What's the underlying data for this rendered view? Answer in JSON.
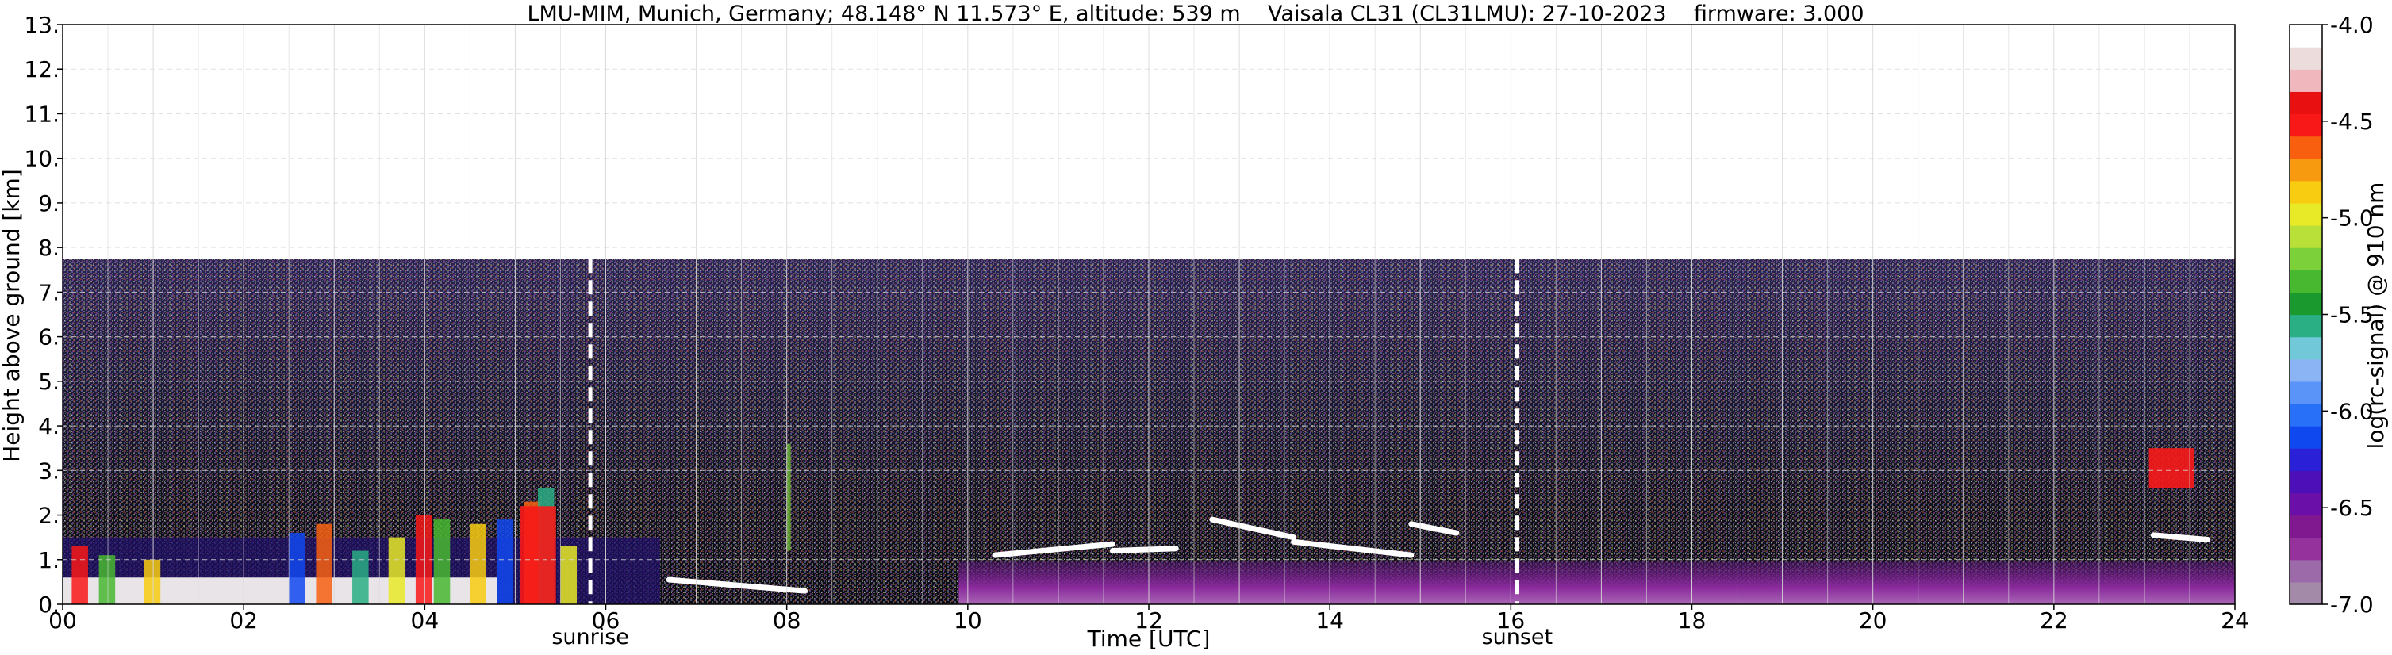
{
  "chart_data": {
    "type": "heatmap",
    "title": "LMU-MIM, Munich, Germany; 48.148° N 11.573° E, altitude: 539 m    Vaisala CL31 (CL31LMU): 27-10-2023    firmware: 3.000",
    "xlabel": "Time [UTC]",
    "ylabel": "Height above ground [km]",
    "xlim": [
      0,
      24
    ],
    "ylim": [
      0,
      13
    ],
    "x_ticks": [
      "00",
      "02",
      "04",
      "06",
      "08",
      "10",
      "12",
      "14",
      "16",
      "18",
      "20",
      "22",
      "24"
    ],
    "y_ticks": [
      "0.",
      "1.",
      "2.",
      "3.",
      "4.",
      "5.",
      "6.",
      "7.",
      "8.",
      "9.",
      "10.",
      "11.",
      "12.",
      "13."
    ],
    "grid": true,
    "signal_top_km": 7.75,
    "markers": [
      {
        "label": "sunrise",
        "time": 5.83
      },
      {
        "label": "sunset",
        "time": 16.07
      }
    ],
    "colorbar": {
      "label": "log(rc-signal) @ 910 nm",
      "range": [
        -7.0,
        -4.0
      ],
      "ticks": [
        "-4.0",
        "-4.5",
        "-5.0",
        "-5.5",
        "-6.0",
        "-6.5",
        "-7.0"
      ],
      "colors": [
        "#a38aa8",
        "#9c6aa8",
        "#95329b",
        "#801890",
        "#6a0fa8",
        "#4c0fb8",
        "#2a20d8",
        "#1048f0",
        "#2870f8",
        "#5a94f8",
        "#8ab4f4",
        "#70c8d8",
        "#2aae84",
        "#1a9a2e",
        "#48b830",
        "#7cd03a",
        "#b8e038",
        "#e8ea28",
        "#f8cc10",
        "#f89a10",
        "#f86010",
        "#f81818",
        "#e81010",
        "#f0b8bc",
        "#ecdcdc",
        "#ffffff"
      ]
    }
  }
}
